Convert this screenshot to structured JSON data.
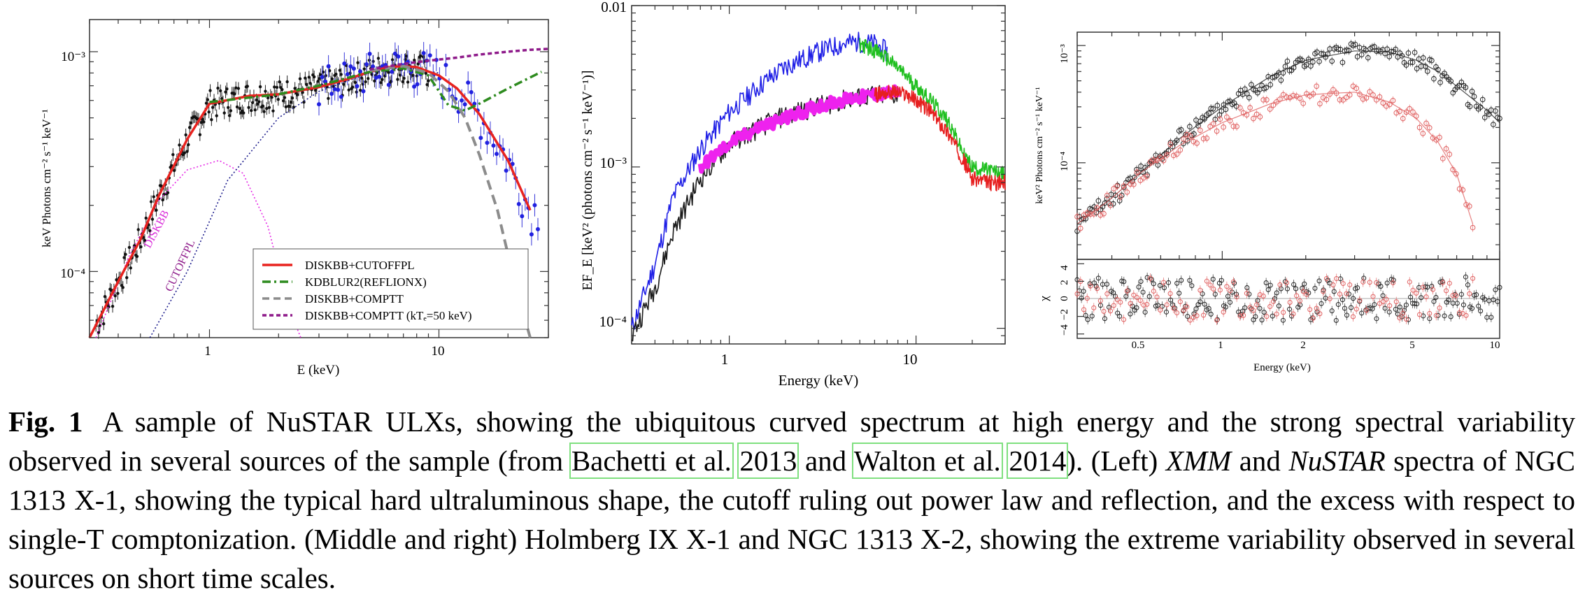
{
  "figure": {
    "panels": [
      {
        "id": "left",
        "xlabel": "E (keV)",
        "ylabel": "keV Photons cm⁻² s⁻¹ keV⁻¹",
        "x_ticks": [
          "1",
          "10"
        ],
        "y_ticks": [
          "10⁻³",
          "10⁻⁴"
        ],
        "annotations": [
          "DISKBB",
          "CUTOFFPL"
        ],
        "legend": [
          "DISKBB+CUTOFFPL",
          "KDBLUR2(REFLIONX)",
          "DISKBB+COMPTT",
          "DISKBB+COMPTT (kTₑ=50 keV)"
        ]
      },
      {
        "id": "middle",
        "xlabel": "Energy (keV)",
        "ylabel": "EF_E [keV² (photons cm⁻² s⁻¹ keV⁻¹)]",
        "x_ticks": [
          "1",
          "10"
        ],
        "y_ticks": [
          "0.01",
          "10⁻³",
          "10⁻⁴"
        ]
      },
      {
        "id": "right",
        "xlabel": "Energy (keV)",
        "ylabel": "keV² Photons cm⁻² s⁻¹ keV⁻¹",
        "residual_label": "χ",
        "x_ticks": [
          "0.5",
          "1",
          "2",
          "5",
          "10"
        ],
        "y_ticks": [
          "10⁻³",
          "10⁻⁴"
        ],
        "residual_ticks": [
          "4",
          "2",
          "0",
          "−2",
          "−4"
        ]
      }
    ]
  },
  "chart_data": [
    {
      "type": "scatter",
      "xscale": "log",
      "yscale": "log",
      "xlabel": "E (keV)",
      "ylabel": "keV Photons cm⁻² s⁻¹ keV⁻¹",
      "xlim": [
        0.3,
        30
      ],
      "ylim": [
        5e-05,
        0.0014
      ],
      "series": [
        {
          "name": "DISKBB+CUTOFFPL",
          "color": "#e8231f",
          "x": [
            0.3,
            0.4,
            0.5,
            0.6,
            0.8,
            1.0,
            1.5,
            2,
            3,
            4,
            5,
            6,
            7,
            8,
            10,
            12,
            15,
            20,
            25
          ],
          "y": [
            5e-05,
            9e-05,
            0.00014,
            0.00022,
            0.0004,
            0.00058,
            0.00063,
            0.00064,
            0.00069,
            0.00075,
            0.00081,
            0.00085,
            0.00086,
            0.00085,
            0.00078,
            0.00068,
            0.00052,
            0.00032,
            0.00019
          ]
        },
        {
          "name": "KDBLUR2(REFLIONX)",
          "color": "#2e8b1f",
          "x": [
            1,
            2,
            3,
            5,
            7,
            9,
            11,
            13,
            15,
            20,
            28
          ],
          "y": [
            0.00059,
            0.00064,
            0.0007,
            0.00081,
            0.00084,
            0.00078,
            0.00057,
            0.00054,
            0.00058,
            0.00068,
            0.00081
          ]
        },
        {
          "name": "DISKBB+COMPTT",
          "color": "#8c8c8c",
          "x": [
            5,
            7,
            9,
            11,
            13,
            15,
            18,
            20,
            22,
            25
          ],
          "y": [
            0.00082,
            0.00086,
            0.0008,
            0.00066,
            0.0005,
            0.00034,
            0.00019,
            0.00012,
            8e-05,
            5e-05
          ]
        },
        {
          "name": "DISKBB+COMPTT (kTₑ=50 keV)",
          "color": "#8e1a8a",
          "x": [
            5,
            7,
            9,
            12,
            15,
            20,
            25,
            30
          ],
          "y": [
            0.00083,
            0.00088,
            0.00091,
            0.00094,
            0.00097,
            0.001,
            0.00102,
            0.00103
          ]
        }
      ]
    },
    {
      "type": "line",
      "xscale": "log",
      "yscale": "log",
      "xlabel": "Energy (keV)",
      "ylabel": "EF_E [keV² (photons cm⁻² s⁻¹ keV⁻¹)]",
      "xlim": [
        0.3,
        30
      ],
      "ylim": [
        8e-05,
        0.01
      ],
      "series": [
        {
          "color": "#1f1fe6",
          "x": [
            0.3,
            0.4,
            0.5,
            0.7,
            1,
            1.5,
            2,
            3,
            4,
            5,
            6,
            7
          ],
          "y": [
            0.0001,
            0.00025,
            0.00065,
            0.0013,
            0.0022,
            0.0033,
            0.0042,
            0.0052,
            0.0058,
            0.006,
            0.0058,
            0.0052
          ]
        },
        {
          "color": "#1a1a1a",
          "x": [
            0.3,
            0.4,
            0.5,
            0.7,
            1,
            1.5,
            2,
            3,
            4,
            6,
            8
          ],
          "y": [
            9e-05,
            0.00018,
            0.0004,
            0.00085,
            0.0014,
            0.0018,
            0.0021,
            0.0024,
            0.0026,
            0.0028,
            0.0028
          ]
        },
        {
          "color": "#ee22ee",
          "x": [
            0.7,
            1,
            1.5,
            2,
            3,
            4,
            6,
            8
          ],
          "y": [
            0.001,
            0.0014,
            0.0018,
            0.002,
            0.0024,
            0.0026,
            0.0028,
            0.0029
          ]
        },
        {
          "color": "#1fbf1f",
          "x": [
            5,
            6,
            7,
            8,
            9,
            10,
            12,
            15,
            18,
            20,
            25,
            30
          ],
          "y": [
            0.0058,
            0.0053,
            0.0047,
            0.0041,
            0.0036,
            0.0032,
            0.0026,
            0.0019,
            0.0012,
            0.001,
            0.00095,
            0.0009
          ]
        },
        {
          "color": "#e61f1f",
          "x": [
            6,
            7,
            8,
            9,
            10,
            12,
            15,
            18,
            20,
            25,
            30
          ],
          "y": [
            0.0028,
            0.0029,
            0.0029,
            0.0028,
            0.0026,
            0.0022,
            0.0016,
            0.0011,
            0.00085,
            0.0008,
            0.0008
          ]
        }
      ]
    },
    {
      "type": "scatter",
      "xscale": "log",
      "yscale": "log",
      "xlabel": "Energy (keV)",
      "ylabel": "keV² Photons cm⁻² s⁻¹ keV⁻¹",
      "xlim": [
        0.3,
        10
      ],
      "ylim": [
        1.5e-05,
        0.0013
      ],
      "residual_ylim": [
        -4.5,
        4.5
      ],
      "series": [
        {
          "color": "#222222",
          "x": [
            0.3,
            0.4,
            0.5,
            0.7,
            1,
            1.5,
            2,
            3,
            4,
            5,
            6,
            7,
            8,
            9,
            10
          ],
          "y": [
            3e-05,
            5e-05,
            8e-05,
            0.00016,
            0.0003,
            0.00055,
            0.00075,
            0.0009,
            0.00088,
            0.00075,
            0.0006,
            0.00045,
            0.00035,
            0.00028,
            0.00022
          ]
        },
        {
          "color": "#e06060",
          "x": [
            0.3,
            0.4,
            0.5,
            0.7,
            1,
            1.5,
            2,
            3,
            4,
            5,
            6,
            7,
            8
          ],
          "y": [
            3e-05,
            5e-05,
            8e-05,
            0.00014,
            0.00022,
            0.00032,
            0.00038,
            0.0004,
            0.00033,
            0.00024,
            0.00015,
            8e-05,
            3e-05
          ]
        }
      ]
    }
  ],
  "caption": {
    "label": "Fig. 1",
    "parts": [
      {
        "t": "A sample of NuSTAR ULXs, showing the ubiquitous curved spectrum at high energy and the strong spectral variability observed in several sources of the sample (from "
      },
      {
        "t": "Bachetti et al.",
        "cite": true
      },
      {
        "t": " "
      },
      {
        "t": "2013",
        "cite": true
      },
      {
        "t": " and "
      },
      {
        "t": "Walton et al.",
        "cite": true
      },
      {
        "t": " "
      },
      {
        "t": "2014",
        "cite": true
      },
      {
        "t": "). (Left) "
      },
      {
        "t": "XMM",
        "italic": true
      },
      {
        "t": " and "
      },
      {
        "t": "NuSTAR",
        "italic": true
      },
      {
        "t": " spectra of NGC 1313 X-1, showing the typical hard ultraluminous shape, the cutoff ruling out power law and reflection, and the excess with respect to single-T comptonization. (Middle and right) Holmberg IX X-1 and NGC 1313 X-2, showing the extreme variability observed in several sources on short time scales."
      }
    ]
  }
}
